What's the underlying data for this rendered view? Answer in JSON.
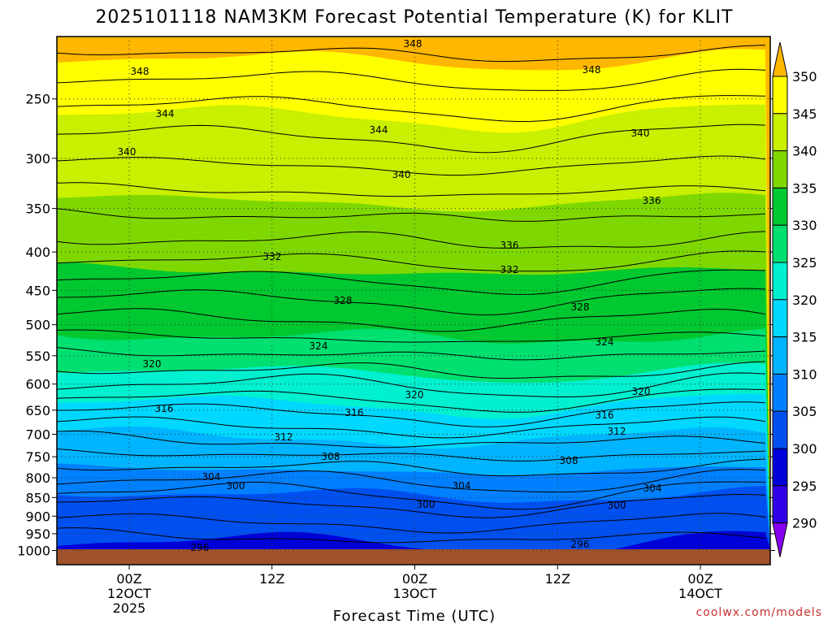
{
  "chart_data": {
    "type": "contour",
    "title": "2025101118 NAM3KM Forecast Potential Temperature (K) for KLIT",
    "xlabel": "Forecast Time (UTC)",
    "ylabel": "",
    "y_scale": "log",
    "y_inverted": true,
    "y_ticks": [
      250,
      300,
      350,
      400,
      450,
      500,
      550,
      600,
      650,
      700,
      750,
      800,
      850,
      900,
      950,
      1000
    ],
    "x_ticks": [
      {
        "line1": "00Z",
        "line2": "12OCT",
        "line3": "2025"
      },
      {
        "line1": "12Z",
        "line2": "",
        "line3": ""
      },
      {
        "line1": "00Z",
        "line2": "13OCT",
        "line3": ""
      },
      {
        "line1": "12Z",
        "line2": "",
        "line3": ""
      },
      {
        "line1": "00Z",
        "line2": "14OCT",
        "line3": ""
      }
    ],
    "colorbar": {
      "labels": [
        350,
        345,
        340,
        335,
        330,
        325,
        320,
        315,
        310,
        305,
        300,
        295,
        290
      ],
      "colors": [
        "#ffb700",
        "#ffff00",
        "#c8f000",
        "#7ed800",
        "#00c830",
        "#00e070",
        "#00f0d0",
        "#00d8ff",
        "#00b4ff",
        "#0080ff",
        "#0050f0",
        "#0000d8",
        "#3000e8",
        "#8800f0"
      ]
    },
    "contour_labels": [
      "348",
      "348",
      "348",
      "344",
      "344",
      "340",
      "340",
      "340",
      "336",
      "336",
      "332",
      "332",
      "328",
      "328",
      "324",
      "324",
      "320",
      "320",
      "320",
      "316",
      "316",
      "316",
      "312",
      "312",
      "308",
      "308",
      "304",
      "304",
      "304",
      "300",
      "300",
      "300",
      "296",
      "296"
    ],
    "grid": "dotted",
    "ground_color": "#a0522d"
  },
  "credit": "coolwx.com/models"
}
